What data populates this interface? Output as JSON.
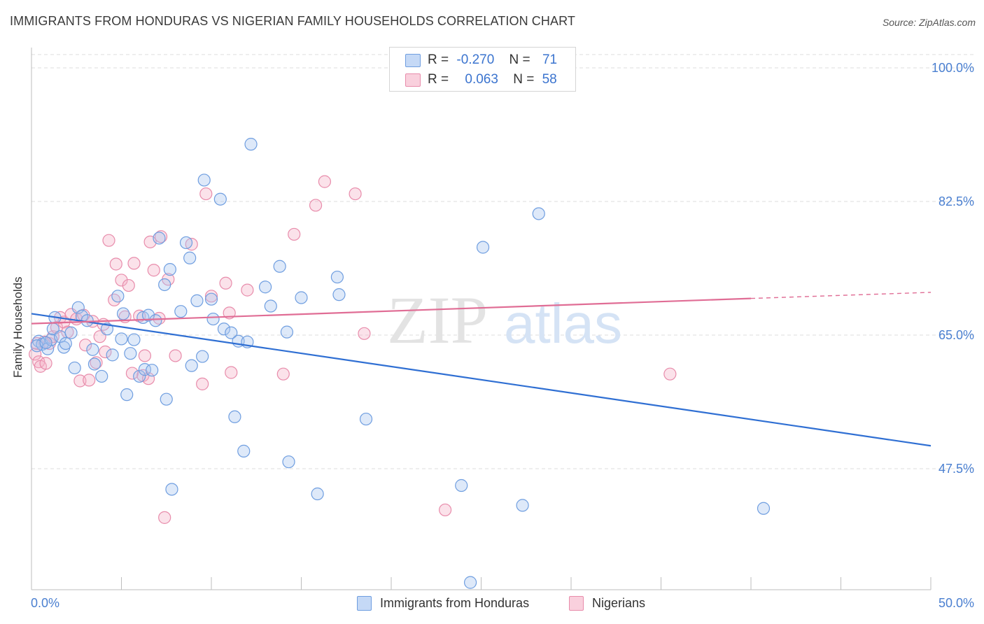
{
  "title": "IMMIGRANTS FROM HONDURAS VS NIGERIAN FAMILY HOUSEHOLDS CORRELATION CHART",
  "source": "Source: ZipAtlas.com",
  "watermark": {
    "zip": "ZIP",
    "atlas": "atlas"
  },
  "colors": {
    "blue_fill": "#a9c6f0",
    "blue_stroke": "#6f9ee0",
    "blue_line": "#2f6fd3",
    "pink_fill": "#f4b3c8",
    "pink_stroke": "#e88cab",
    "pink_line": "#e06d95",
    "axis_text": "#4a7fd0",
    "grid": "#dcdcdc"
  },
  "legend_top": {
    "series": [
      {
        "r_label": "R =",
        "r_value": "-0.270",
        "n_label": "N =",
        "n_value": "71"
      },
      {
        "r_label": "R =",
        "r_value": "0.063",
        "n_label": "N =",
        "n_value": "58"
      }
    ]
  },
  "legend_bottom": [
    "Immigrants from Honduras",
    "Nigerians"
  ],
  "chart_data": {
    "type": "scatter",
    "title": "IMMIGRANTS FROM HONDURAS VS NIGERIAN FAMILY HOUSEHOLDS CORRELATION CHART",
    "xlabel": "",
    "ylabel": "Family Households",
    "xlim": [
      0,
      50
    ],
    "ylim": [
      30,
      100
    ],
    "x_tick_labels": [
      "0.0%",
      "50.0%"
    ],
    "y_ticks": [
      47.5,
      65.0,
      82.5,
      100.0
    ],
    "y_tick_labels": [
      "47.5%",
      "65.0%",
      "82.5%",
      "100.0%"
    ],
    "grid": true,
    "series": [
      {
        "name": "Immigrants from Honduras",
        "color": "blue",
        "r": -0.27,
        "n": 71,
        "trend": {
          "x0": 0,
          "y0": 67.8,
          "x1": 50,
          "y1": 50.5
        },
        "points": [
          [
            0.4,
            64.2
          ],
          [
            0.6,
            63.8
          ],
          [
            0.9,
            63.2
          ],
          [
            1.1,
            64.4
          ],
          [
            1.2,
            65.8
          ],
          [
            1.3,
            67.3
          ],
          [
            1.6,
            64.8
          ],
          [
            1.8,
            63.4
          ],
          [
            1.9,
            63.9
          ],
          [
            2.2,
            65.3
          ],
          [
            2.4,
            60.7
          ],
          [
            2.6,
            68.6
          ],
          [
            2.8,
            67.5
          ],
          [
            3.1,
            66.9
          ],
          [
            3.4,
            63.1
          ],
          [
            3.5,
            61.2
          ],
          [
            3.9,
            59.6
          ],
          [
            4.2,
            65.8
          ],
          [
            4.5,
            62.4
          ],
          [
            4.8,
            70.1
          ],
          [
            5.0,
            64.5
          ],
          [
            5.1,
            67.8
          ],
          [
            5.3,
            57.2
          ],
          [
            5.5,
            62.6
          ],
          [
            5.7,
            64.4
          ],
          [
            6.0,
            59.6
          ],
          [
            6.2,
            67.3
          ],
          [
            6.3,
            60.5
          ],
          [
            6.5,
            67.6
          ],
          [
            6.7,
            60.4
          ],
          [
            6.9,
            66.9
          ],
          [
            7.1,
            77.7
          ],
          [
            7.4,
            71.6
          ],
          [
            7.5,
            56.6
          ],
          [
            7.7,
            73.6
          ],
          [
            7.8,
            44.8
          ],
          [
            8.3,
            68.1
          ],
          [
            8.6,
            77.1
          ],
          [
            8.8,
            75.1
          ],
          [
            8.9,
            61.0
          ],
          [
            9.2,
            69.5
          ],
          [
            9.5,
            62.2
          ],
          [
            9.6,
            85.3
          ],
          [
            10.0,
            69.7
          ],
          [
            10.1,
            67.1
          ],
          [
            10.5,
            82.8
          ],
          [
            10.7,
            65.8
          ],
          [
            11.1,
            65.3
          ],
          [
            11.3,
            54.3
          ],
          [
            11.5,
            64.2
          ],
          [
            11.8,
            49.8
          ],
          [
            12.0,
            64.1
          ],
          [
            12.2,
            90.0
          ],
          [
            13.0,
            71.3
          ],
          [
            13.3,
            68.8
          ],
          [
            13.8,
            74.0
          ],
          [
            14.2,
            65.4
          ],
          [
            14.3,
            48.4
          ],
          [
            15.0,
            69.9
          ],
          [
            15.9,
            44.2
          ],
          [
            17.0,
            72.6
          ],
          [
            17.1,
            70.3
          ],
          [
            18.6,
            54.0
          ],
          [
            23.9,
            45.3
          ],
          [
            24.4,
            32.6
          ],
          [
            25.1,
            76.5
          ],
          [
            27.3,
            42.7
          ],
          [
            28.2,
            80.9
          ],
          [
            40.7,
            42.3
          ],
          [
            0.3,
            63.6
          ],
          [
            0.8,
            64.0
          ]
        ]
      },
      {
        "name": "Nigerians",
        "color": "pink",
        "r": 0.063,
        "n": 58,
        "trend": {
          "x0": 0,
          "y0": 66.5,
          "x1": 40,
          "y1": 69.8,
          "dash_to_x": 50,
          "dash_to_y": 70.6
        },
        "points": [
          [
            0.2,
            62.5
          ],
          [
            0.4,
            61.5
          ],
          [
            0.5,
            60.9
          ],
          [
            0.7,
            64.1
          ],
          [
            0.8,
            61.3
          ],
          [
            1.0,
            63.9
          ],
          [
            1.2,
            64.8
          ],
          [
            1.4,
            66.0
          ],
          [
            1.6,
            67.3
          ],
          [
            1.8,
            66.7
          ],
          [
            2.0,
            65.4
          ],
          [
            2.2,
            67.7
          ],
          [
            2.5,
            67.1
          ],
          [
            2.7,
            59.0
          ],
          [
            2.9,
            67.6
          ],
          [
            3.0,
            63.7
          ],
          [
            3.2,
            59.1
          ],
          [
            3.4,
            66.8
          ],
          [
            3.6,
            61.4
          ],
          [
            3.8,
            64.8
          ],
          [
            4.0,
            66.4
          ],
          [
            4.1,
            62.8
          ],
          [
            4.3,
            77.4
          ],
          [
            4.6,
            69.6
          ],
          [
            4.7,
            74.3
          ],
          [
            5.0,
            72.2
          ],
          [
            5.2,
            67.4
          ],
          [
            5.4,
            71.5
          ],
          [
            5.6,
            60.0
          ],
          [
            5.7,
            74.4
          ],
          [
            6.0,
            67.5
          ],
          [
            6.2,
            59.7
          ],
          [
            6.3,
            62.3
          ],
          [
            6.5,
            59.3
          ],
          [
            6.6,
            77.2
          ],
          [
            6.8,
            73.5
          ],
          [
            7.1,
            67.2
          ],
          [
            7.2,
            77.9
          ],
          [
            7.4,
            41.1
          ],
          [
            7.6,
            72.3
          ],
          [
            8.0,
            62.3
          ],
          [
            8.9,
            76.9
          ],
          [
            9.5,
            58.6
          ],
          [
            9.7,
            83.5
          ],
          [
            10.0,
            70.1
          ],
          [
            10.8,
            71.8
          ],
          [
            11.0,
            67.9
          ],
          [
            11.1,
            60.1
          ],
          [
            12.0,
            70.9
          ],
          [
            14.0,
            59.9
          ],
          [
            14.6,
            78.2
          ],
          [
            15.8,
            82.0
          ],
          [
            16.3,
            85.1
          ],
          [
            18.0,
            83.5
          ],
          [
            18.5,
            65.2
          ],
          [
            23.0,
            42.1
          ],
          [
            35.5,
            59.9
          ],
          [
            0.3,
            63.9
          ]
        ]
      }
    ]
  }
}
